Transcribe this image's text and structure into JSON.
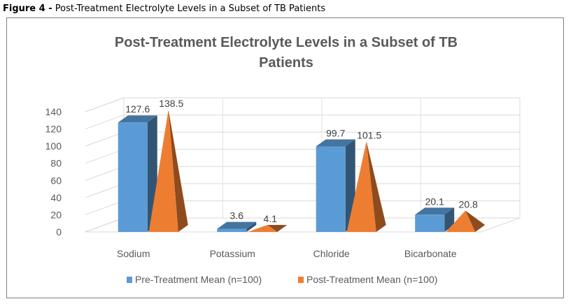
{
  "caption": {
    "prefix": "Figure 4 -",
    "text": "Post-Treatment Electrolyte Levels in a Subset of TB Patients"
  },
  "chart_data": {
    "type": "bar",
    "title_line1": "Post-Treatment Electrolyte Levels in a Subset of TB",
    "title_line2": "Patients",
    "categories": [
      "Sodium",
      "Potassium",
      "Chloride",
      "Bicarbonate"
    ],
    "series": [
      {
        "name": "Pre-Treatment Mean (n=100)",
        "values": [
          127.6,
          3.6,
          99.7,
          20.1
        ],
        "labels": [
          "127.6",
          "3.6",
          "99.7",
          "20.1"
        ],
        "color": "#5b9bd5",
        "shape": "box"
      },
      {
        "name": "Post-Treatment Mean (n=100)",
        "values": [
          138.5,
          4.1,
          101.5,
          20.8
        ],
        "labels": [
          "138.5",
          "4.1",
          "101.5",
          "20.8"
        ],
        "color": "#ed7d31",
        "shape": "pyramid"
      }
    ],
    "ylim": [
      0,
      140
    ],
    "yticks": [
      "0",
      "20",
      "40",
      "60",
      "80",
      "100",
      "120",
      "140"
    ],
    "grid": true,
    "legend_position": "bottom",
    "three_d": true
  }
}
